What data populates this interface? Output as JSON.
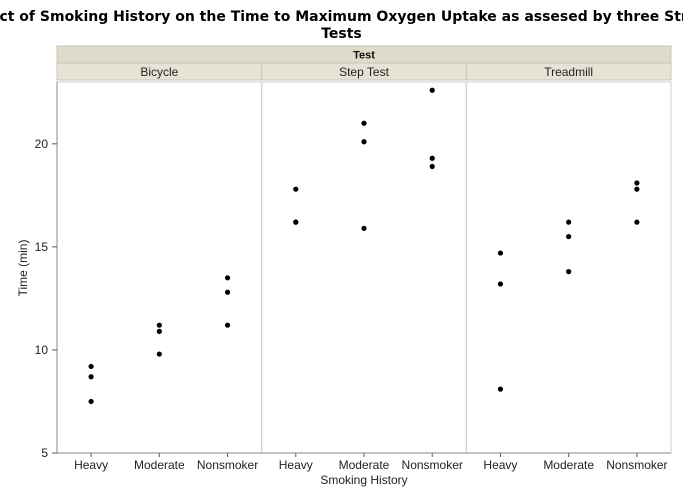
{
  "chart_data": {
    "type": "scatter",
    "title_line1": "Effect of Smoking History on the Time to Maximum Oxygen Uptake as assesed by three Stress",
    "title_line2": "Tests",
    "group_title": "Test",
    "panels": [
      {
        "name": "Bicycle",
        "points": {
          "Heavy": [
            9.2,
            8.7,
            7.5
          ],
          "Moderate": [
            11.2,
            10.9,
            9.8
          ],
          "Nonsmoker": [
            13.5,
            12.8,
            11.2
          ]
        }
      },
      {
        "name": "Step Test",
        "points": {
          "Heavy": [
            17.8,
            16.2,
            16.2
          ],
          "Moderate": [
            21.0,
            20.1,
            15.9
          ],
          "Nonsmoker": [
            22.6,
            19.3,
            18.9
          ]
        }
      },
      {
        "name": "Treadmill",
        "points": {
          "Heavy": [
            14.7,
            13.2,
            8.1
          ],
          "Moderate": [
            16.2,
            15.5,
            13.8
          ],
          "Nonsmoker": [
            18.1,
            17.8,
            16.2
          ]
        }
      }
    ],
    "categories": [
      "Heavy",
      "Moderate",
      "Nonsmoker"
    ],
    "xlabel": "Smoking History",
    "ylabel": "Time (min)",
    "ylim": [
      5,
      23
    ],
    "yticks": [
      5,
      10,
      15,
      20
    ],
    "grid": false
  }
}
